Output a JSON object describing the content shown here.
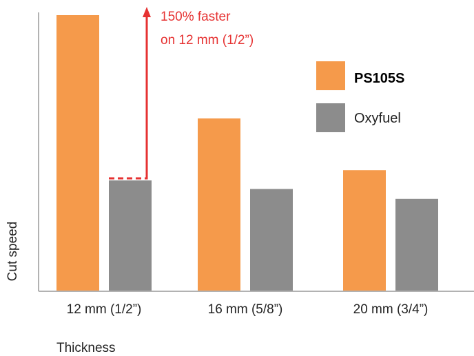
{
  "chart_data": {
    "type": "bar",
    "categories": [
      "12 mm (1/2”)",
      "16 mm (5/8”)",
      "20 mm (3/4”)"
    ],
    "series": [
      {
        "name": "PS105S",
        "values": [
          100,
          62.5,
          43.7
        ],
        "color": "#F59A4B"
      },
      {
        "name": "Oxyfuel",
        "values": [
          40,
          36.9,
          33.3
        ],
        "color": "#8C8C8C"
      }
    ],
    "xlabel": "Thickness",
    "ylabel": "Cut speed",
    "ylim": [
      0,
      100
    ],
    "grid": false,
    "legend_position": "top-right",
    "annotation": {
      "lines": [
        "150% faster",
        "on 12 mm (1/2”)"
      ],
      "color": "#E63232"
    }
  }
}
